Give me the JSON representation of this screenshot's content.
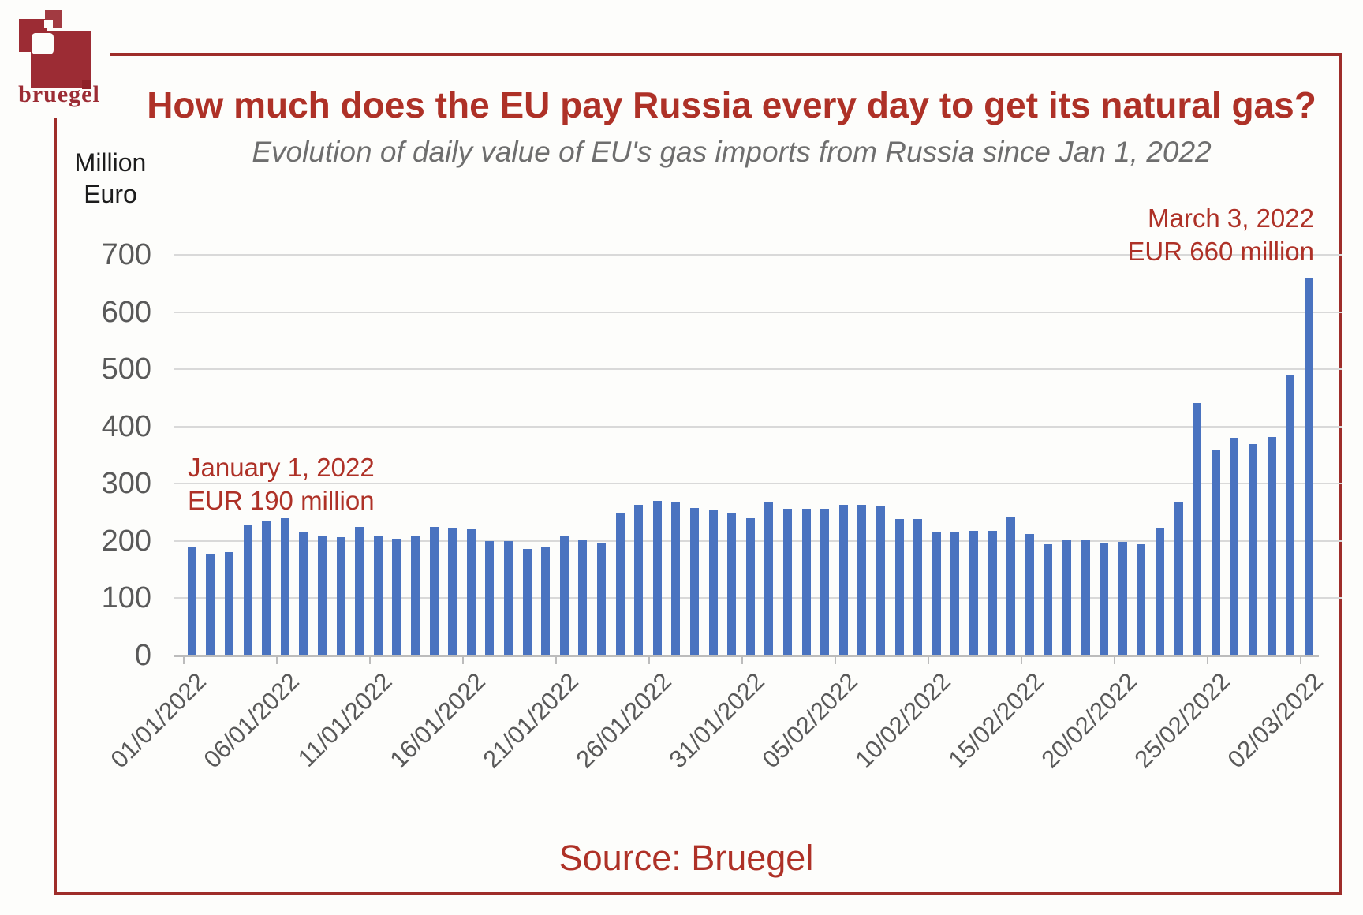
{
  "brand": {
    "logo_text": "bruegel"
  },
  "header": {
    "title": "How much does the EU pay Russia every day to get its natural gas?",
    "subtitle": "Evolution of daily value of EU's gas imports from Russia since Jan 1, 2022"
  },
  "y_axis": {
    "unit_line1": "Million",
    "unit_line2": "Euro"
  },
  "annotations": {
    "start": {
      "line1": "January 1, 2022",
      "line2": "EUR 190 million"
    },
    "peak": {
      "line1": "March 3, 2022",
      "line2": "EUR 660 million"
    }
  },
  "footer": {
    "source": "Source: Bruegel"
  },
  "colors": {
    "red": "#ae3127",
    "maroon": "#9c2c34",
    "maroon_light": "#a23a41",
    "maroon_dark": "#8f2129",
    "border": "#9e2d2a",
    "bar": "#4a73c0",
    "grid": "#d9d9d9",
    "axis_line": "#bcbcbc",
    "axis_text": "#595959",
    "subtitle_gray": "#6e6e6e"
  },
  "chart_data": {
    "type": "bar",
    "title": "How much does the EU pay Russia every day to get its natural gas?",
    "subtitle": "Evolution of daily value of EU's gas imports from Russia since Jan 1, 2022",
    "ylabel": "Million Euro",
    "ylim": [
      0,
      700
    ],
    "y_ticks": [
      0,
      100,
      200,
      300,
      400,
      500,
      600,
      700
    ],
    "grid": "horizontal",
    "legend": "none",
    "x_tick_interval": 5,
    "x_tick_labels": [
      "01/01/2022",
      "06/01/2022",
      "11/01/2022",
      "16/01/2022",
      "21/01/2022",
      "26/01/2022",
      "31/01/2022",
      "05/02/2022",
      "10/02/2022",
      "15/02/2022",
      "20/02/2022",
      "25/02/2022",
      "02/03/2022"
    ],
    "values": [
      190,
      178,
      180,
      228,
      236,
      240,
      215,
      208,
      207,
      224,
      208,
      204,
      208,
      225,
      222,
      220,
      200,
      200,
      186,
      190,
      208,
      203,
      197,
      250,
      263,
      270,
      267,
      258,
      253,
      250,
      240,
      268,
      257,
      257,
      257,
      263,
      263,
      260,
      239,
      238,
      216,
      216,
      218,
      218,
      242,
      212,
      195,
      203,
      202,
      197,
      199,
      195,
      223,
      267,
      441,
      360,
      380,
      370,
      382,
      490,
      660
    ],
    "point_annotations": [
      {
        "label": "January 1, 2022 EUR 190 million",
        "value": 190,
        "position": "first bar"
      },
      {
        "label": "March 3, 2022 EUR 660 million",
        "value": 660,
        "position": "last bar"
      }
    ]
  }
}
